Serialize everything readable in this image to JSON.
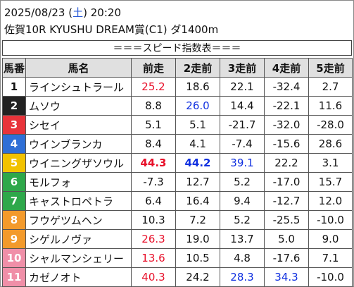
{
  "header": {
    "date": "2025/08/23",
    "day_open": "(",
    "day": "土",
    "day_close": ")",
    "time": "20:20",
    "race": "佐賀10R KYUSHU DREAM賞(C1) ダ1400m"
  },
  "table": {
    "caption": "＝＝＝スピード指数表＝＝＝",
    "columns": [
      "馬番",
      "馬名",
      "前走",
      "2走前",
      "3走前",
      "4走前",
      "5走前"
    ],
    "gate_colors": [
      "#ffffff",
      "#222222",
      "#e8333a",
      "#2f6fd6",
      "#f2c200",
      "#2ea84a",
      "#2ea84a",
      "#f39a2b",
      "#f39a2b",
      "#f08fa8",
      "#f08fa8"
    ],
    "rows": [
      [
        "1",
        "ラインシュトラール",
        {
          "text": "25.2",
          "color": "#e8102a"
        },
        "18.6",
        "22.1",
        "-32.4",
        "2.7"
      ],
      [
        "2",
        "ムソウ",
        "8.8",
        {
          "text": "26.0",
          "color": "#1030e0"
        },
        "14.4",
        "-22.1",
        "11.6"
      ],
      [
        "3",
        "シセイ",
        "5.1",
        "5.1",
        "-21.7",
        "-32.0",
        "-28.0"
      ],
      [
        "4",
        "ウインブランカ",
        "8.4",
        "4.1",
        "-7.4",
        "-15.6",
        "28.6"
      ],
      [
        "5",
        "ウイニングザソウル",
        {
          "text": "44.3",
          "color": "#e8102a",
          "bold": true
        },
        {
          "text": "44.2",
          "color": "#1030e0",
          "bold": true
        },
        {
          "text": "39.1",
          "color": "#1030e0"
        },
        "22.2",
        "3.1"
      ],
      [
        "6",
        "モルフォ",
        "-7.3",
        "12.7",
        "5.2",
        "-17.0",
        "15.7"
      ],
      [
        "7",
        "キャストロペトラ",
        "6.4",
        "16.4",
        "9.4",
        "-12.7",
        "12.0"
      ],
      [
        "8",
        "フウゲツムヘン",
        "10.3",
        "7.2",
        "5.2",
        "-25.5",
        "-10.0"
      ],
      [
        "9",
        "シゲルノヴァ",
        {
          "text": "26.3",
          "color": "#e8102a"
        },
        "19.0",
        "13.7",
        "5.0",
        "9.0"
      ],
      [
        "10",
        "シャルマンシェリー",
        {
          "text": "13.6",
          "color": "#e8102a"
        },
        "10.5",
        "4.8",
        "-17.6",
        "7.1"
      ],
      [
        "11",
        "カゼノオト",
        {
          "text": "40.3",
          "color": "#e8102a"
        },
        "24.2",
        {
          "text": "28.3",
          "color": "#1030e0"
        },
        {
          "text": "34.3",
          "color": "#1030e0"
        },
        "-10.0"
      ]
    ]
  }
}
